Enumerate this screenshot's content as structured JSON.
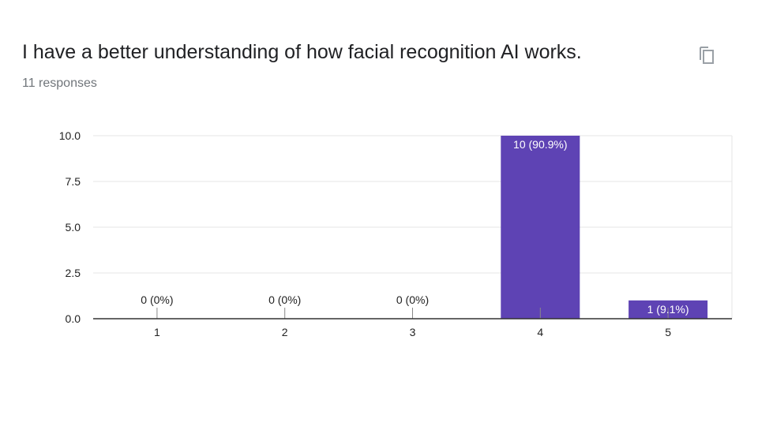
{
  "question": {
    "title": "I have a better understanding of how facial recognition AI works.",
    "response_count": "11 responses"
  },
  "toolbar": {
    "copy_icon": "copy-icon"
  },
  "colors": {
    "bar": "#5e43b4",
    "grid": "#e6e6e6",
    "axis": "#333333",
    "tick": "#888888"
  },
  "chart_data": {
    "type": "bar",
    "categories": [
      "1",
      "2",
      "3",
      "4",
      "5"
    ],
    "values": [
      0,
      0,
      0,
      10,
      1
    ],
    "data_labels": [
      "0 (0%)",
      "0 (0%)",
      "0 (0%)",
      "10 (90.9%)",
      "1 (9.1%)"
    ],
    "y_ticks": [
      "0.0",
      "2.5",
      "5.0",
      "7.5",
      "10.0"
    ],
    "y_tick_values": [
      0,
      2.5,
      5,
      7.5,
      10
    ],
    "ylim": [
      0,
      10
    ],
    "grid": true,
    "legend": "none"
  }
}
